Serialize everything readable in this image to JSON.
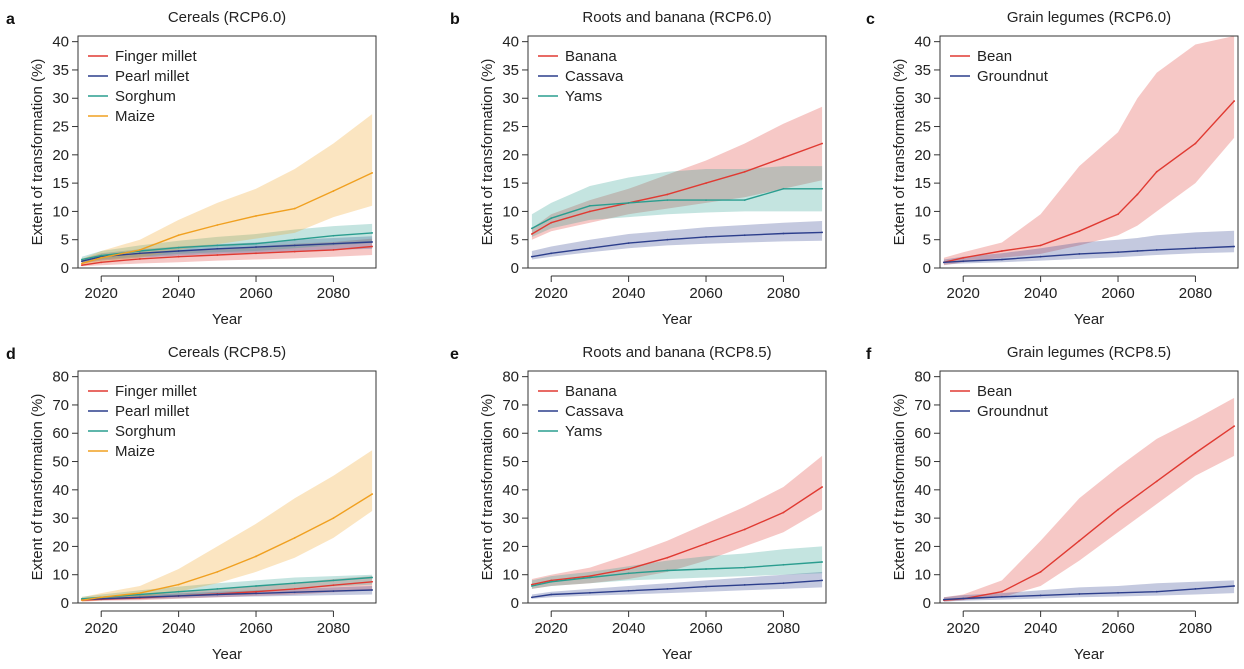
{
  "chart_data": [
    {
      "panel": "a",
      "type": "line",
      "title": "Cereals (RCP6.0)",
      "xlabel": "Year",
      "ylabel": "Extent of transformation (%)",
      "xlim": [
        2014,
        2091
      ],
      "ylim": [
        0,
        41
      ],
      "xticks": [
        2020,
        2040,
        2060,
        2080
      ],
      "yticks": [
        0,
        5,
        10,
        15,
        20,
        25,
        30,
        35,
        40
      ],
      "x": [
        2015,
        2020,
        2030,
        2040,
        2050,
        2060,
        2070,
        2080,
        2090
      ],
      "series": [
        {
          "name": "Finger millet",
          "color": "#e03a32",
          "values": [
            0.5,
            1.0,
            1.6,
            2.0,
            2.3,
            2.6,
            2.9,
            3.2,
            3.8
          ],
          "lower": [
            0.3,
            0.5,
            0.8,
            1.0,
            1.3,
            1.5,
            1.7,
            2.0,
            2.3
          ],
          "upper": [
            1.0,
            1.8,
            2.6,
            3.0,
            3.3,
            3.8,
            4.3,
            4.6,
            5.2
          ]
        },
        {
          "name": "Pearl millet",
          "color": "#2c3e8c",
          "values": [
            1.2,
            2.0,
            2.6,
            3.0,
            3.4,
            3.7,
            4.0,
            4.3,
            4.6
          ],
          "lower": [
            0.8,
            1.3,
            1.8,
            2.2,
            2.5,
            2.7,
            3.0,
            3.2,
            3.4
          ],
          "upper": [
            1.6,
            2.6,
            3.3,
            3.8,
            4.2,
            4.5,
            5.0,
            5.3,
            5.6
          ]
        },
        {
          "name": "Sorghum",
          "color": "#2a9d8f",
          "values": [
            1.5,
            2.2,
            3.0,
            3.6,
            4.0,
            4.3,
            5.0,
            5.7,
            6.2
          ],
          "lower": [
            1.0,
            1.5,
            2.0,
            2.5,
            2.8,
            3.0,
            3.5,
            4.0,
            4.4
          ],
          "upper": [
            2.0,
            3.0,
            4.0,
            4.8,
            5.5,
            6.0,
            6.8,
            7.4,
            7.8
          ]
        },
        {
          "name": "Maize",
          "color": "#f0a020",
          "values": [
            0.8,
            1.8,
            3.2,
            5.8,
            7.6,
            9.2,
            10.5,
            13.6,
            16.8
          ],
          "lower": [
            0.4,
            1.0,
            1.8,
            3.2,
            4.2,
            5.2,
            6.2,
            9.0,
            11.0
          ],
          "upper": [
            1.6,
            3.0,
            5.0,
            8.5,
            11.5,
            14.0,
            17.5,
            22.0,
            27.2
          ]
        }
      ]
    },
    {
      "panel": "b",
      "type": "line",
      "title": "Roots and banana (RCP6.0)",
      "xlabel": "Year",
      "ylabel": "Extent of transformation (%)",
      "xlim": [
        2014,
        2091
      ],
      "ylim": [
        0,
        41
      ],
      "xticks": [
        2020,
        2040,
        2060,
        2080
      ],
      "yticks": [
        0,
        5,
        10,
        15,
        20,
        25,
        30,
        35,
        40
      ],
      "x": [
        2015,
        2020,
        2030,
        2040,
        2050,
        2060,
        2070,
        2080,
        2090
      ],
      "series": [
        {
          "name": "Banana",
          "color": "#e03a32",
          "values": [
            6.0,
            8.0,
            10.0,
            11.5,
            13.0,
            15.0,
            17.0,
            19.5,
            22.0
          ],
          "lower": [
            5.0,
            6.5,
            8.0,
            9.5,
            10.5,
            11.5,
            12.5,
            14.0,
            15.5
          ],
          "upper": [
            7.0,
            9.5,
            12.0,
            14.0,
            16.5,
            19.0,
            22.0,
            25.5,
            28.5
          ]
        },
        {
          "name": "Cassava",
          "color": "#2c3e8c",
          "values": [
            2.0,
            2.6,
            3.5,
            4.4,
            5.0,
            5.5,
            5.8,
            6.1,
            6.3
          ],
          "lower": [
            1.5,
            2.0,
            2.8,
            3.5,
            4.0,
            4.3,
            4.5,
            4.7,
            4.8
          ],
          "upper": [
            3.0,
            3.8,
            5.0,
            6.0,
            6.6,
            7.2,
            7.6,
            8.0,
            8.3
          ]
        },
        {
          "name": "Yams",
          "color": "#2a9d8f",
          "values": [
            7.0,
            8.8,
            11.0,
            11.5,
            12.0,
            12.0,
            12.0,
            14.0,
            14.0
          ],
          "lower": [
            5.5,
            7.0,
            8.5,
            9.0,
            9.5,
            9.8,
            10.0,
            10.0,
            10.0
          ],
          "upper": [
            9.5,
            11.5,
            14.5,
            16.0,
            17.0,
            17.5,
            17.5,
            18.0,
            18.0
          ]
        }
      ]
    },
    {
      "panel": "c",
      "type": "line",
      "title": "Grain legumes (RCP6.0)",
      "xlabel": "Year",
      "ylabel": "Extent of transformation (%)",
      "xlim": [
        2014,
        2091
      ],
      "ylim": [
        0,
        41
      ],
      "xticks": [
        2020,
        2040,
        2060,
        2080
      ],
      "yticks": [
        0,
        5,
        10,
        15,
        20,
        25,
        30,
        35,
        40
      ],
      "x": [
        2015,
        2020,
        2030,
        2040,
        2050,
        2060,
        2065,
        2070,
        2080,
        2090
      ],
      "series": [
        {
          "name": "Bean",
          "color": "#e03a32",
          "values": [
            1.0,
            1.8,
            3.0,
            4.0,
            6.5,
            9.5,
            13.0,
            17.0,
            22.0,
            29.5
          ],
          "lower": [
            0.5,
            1.0,
            1.8,
            2.5,
            4.0,
            5.8,
            7.5,
            10.0,
            15.0,
            23.0
          ],
          "upper": [
            1.8,
            2.8,
            4.5,
            9.5,
            18.0,
            24.0,
            30.0,
            34.5,
            39.5,
            41.0
          ]
        },
        {
          "name": "Groundnut",
          "color": "#2c3e8c",
          "values": [
            1.0,
            1.2,
            1.5,
            2.0,
            2.5,
            2.8,
            3.0,
            3.2,
            3.5,
            3.8
          ],
          "lower": [
            0.6,
            0.8,
            1.0,
            1.3,
            1.6,
            1.9,
            2.1,
            2.3,
            2.6,
            2.8
          ],
          "upper": [
            1.5,
            2.0,
            2.6,
            3.5,
            4.5,
            5.0,
            5.3,
            5.8,
            6.3,
            6.6
          ]
        }
      ]
    },
    {
      "panel": "d",
      "type": "line",
      "title": "Cereals (RCP8.5)",
      "xlabel": "Year",
      "ylabel": "Extent of transformation (%)",
      "xlim": [
        2014,
        2091
      ],
      "ylim": [
        0,
        82
      ],
      "xticks": [
        2020,
        2040,
        2060,
        2080
      ],
      "yticks": [
        0,
        10,
        20,
        30,
        40,
        50,
        60,
        70,
        80
      ],
      "x": [
        2015,
        2020,
        2030,
        2040,
        2050,
        2060,
        2070,
        2080,
        2090
      ],
      "series": [
        {
          "name": "Finger millet",
          "color": "#e03a32",
          "values": [
            1.0,
            1.3,
            1.8,
            2.5,
            3.2,
            4.0,
            5.0,
            6.3,
            7.5
          ],
          "lower": [
            0.5,
            0.8,
            1.0,
            1.5,
            2.0,
            2.5,
            3.0,
            3.8,
            4.5
          ],
          "upper": [
            1.5,
            2.0,
            2.8,
            3.8,
            4.8,
            6.0,
            7.2,
            8.5,
            9.5
          ]
        },
        {
          "name": "Pearl millet",
          "color": "#2c3e8c",
          "values": [
            1.2,
            1.5,
            2.0,
            2.5,
            3.0,
            3.4,
            3.8,
            4.2,
            4.6
          ],
          "lower": [
            0.7,
            1.0,
            1.3,
            1.7,
            2.0,
            2.3,
            2.5,
            2.8,
            3.0
          ],
          "upper": [
            1.7,
            2.2,
            2.8,
            3.4,
            4.0,
            4.5,
            5.0,
            5.5,
            6.0
          ]
        },
        {
          "name": "Sorghum",
          "color": "#2a9d8f",
          "values": [
            1.5,
            2.0,
            3.0,
            4.0,
            5.0,
            6.0,
            7.0,
            8.0,
            9.0
          ],
          "lower": [
            1.0,
            1.4,
            2.0,
            2.7,
            3.5,
            4.2,
            5.0,
            5.8,
            6.5
          ],
          "upper": [
            2.2,
            3.0,
            4.5,
            5.8,
            7.0,
            8.0,
            9.0,
            9.5,
            10.0
          ]
        },
        {
          "name": "Maize",
          "color": "#f0a020",
          "values": [
            1.0,
            2.0,
            3.5,
            6.5,
            11.0,
            16.5,
            23.0,
            30.0,
            38.5
          ],
          "lower": [
            0.5,
            1.0,
            2.0,
            4.0,
            7.0,
            11.0,
            16.0,
            23.0,
            32.5
          ],
          "upper": [
            2.0,
            3.5,
            6.0,
            12.0,
            20.0,
            28.0,
            37.0,
            45.0,
            54.0
          ]
        }
      ]
    },
    {
      "panel": "e",
      "type": "line",
      "title": "Roots and banana (RCP8.5)",
      "xlabel": "Year",
      "ylabel": "Extent of transformation (%)",
      "xlim": [
        2014,
        2091
      ],
      "ylim": [
        0,
        82
      ],
      "xticks": [
        2020,
        2040,
        2060,
        2080
      ],
      "yticks": [
        0,
        10,
        20,
        30,
        40,
        50,
        60,
        70,
        80
      ],
      "x": [
        2015,
        2020,
        2030,
        2040,
        2050,
        2060,
        2070,
        2080,
        2090
      ],
      "series": [
        {
          "name": "Banana",
          "color": "#e03a32",
          "values": [
            6.5,
            8.0,
            9.5,
            12.0,
            16.0,
            21.0,
            26.0,
            32.0,
            41.0
          ],
          "lower": [
            5.0,
            6.0,
            7.0,
            8.5,
            11.0,
            15.0,
            20.0,
            25.0,
            33.0
          ],
          "upper": [
            8.5,
            10.0,
            12.5,
            17.0,
            22.0,
            28.0,
            34.0,
            41.0,
            52.0
          ]
        },
        {
          "name": "Cassava",
          "color": "#2c3e8c",
          "values": [
            2.0,
            3.0,
            3.6,
            4.3,
            5.0,
            5.8,
            6.4,
            7.0,
            8.0
          ],
          "lower": [
            1.5,
            2.0,
            2.6,
            3.0,
            3.5,
            4.0,
            4.5,
            5.0,
            5.5
          ],
          "upper": [
            3.0,
            4.0,
            5.0,
            6.0,
            7.0,
            8.0,
            9.0,
            10.0,
            11.0
          ]
        },
        {
          "name": "Yams",
          "color": "#2a9d8f",
          "values": [
            6.0,
            7.5,
            9.0,
            10.5,
            11.5,
            12.0,
            12.5,
            13.5,
            14.5
          ],
          "lower": [
            5.0,
            6.0,
            7.0,
            8.0,
            8.5,
            9.0,
            9.5,
            10.0,
            10.5
          ],
          "upper": [
            8.0,
            9.5,
            11.0,
            13.0,
            15.0,
            16.5,
            17.5,
            19.0,
            20.0
          ]
        }
      ]
    },
    {
      "panel": "f",
      "type": "line",
      "title": "Grain legumes (RCP8.5)",
      "xlabel": "Year",
      "ylabel": "Extent of transformation (%)",
      "xlim": [
        2014,
        2091
      ],
      "ylim": [
        0,
        82
      ],
      "xticks": [
        2020,
        2040,
        2060,
        2080
      ],
      "yticks": [
        0,
        10,
        20,
        30,
        40,
        50,
        60,
        70,
        80
      ],
      "x": [
        2015,
        2020,
        2030,
        2040,
        2050,
        2060,
        2070,
        2080,
        2090
      ],
      "series": [
        {
          "name": "Bean",
          "color": "#e03a32",
          "values": [
            1.0,
            1.5,
            4.0,
            11.0,
            22.0,
            33.0,
            43.0,
            53.0,
            62.5
          ],
          "lower": [
            0.5,
            1.0,
            2.0,
            6.0,
            15.0,
            25.0,
            35.0,
            45.0,
            52.0
          ],
          "upper": [
            2.0,
            3.0,
            8.0,
            22.0,
            37.0,
            48.0,
            58.0,
            65.0,
            72.5
          ]
        },
        {
          "name": "Groundnut",
          "color": "#2c3e8c",
          "values": [
            1.2,
            1.6,
            2.2,
            2.7,
            3.2,
            3.6,
            4.0,
            5.0,
            6.0
          ],
          "lower": [
            0.5,
            0.8,
            1.2,
            1.6,
            2.0,
            2.3,
            2.6,
            3.0,
            3.5
          ],
          "upper": [
            2.0,
            2.8,
            3.5,
            4.5,
            5.5,
            6.0,
            7.0,
            7.5,
            8.0
          ]
        }
      ]
    }
  ]
}
